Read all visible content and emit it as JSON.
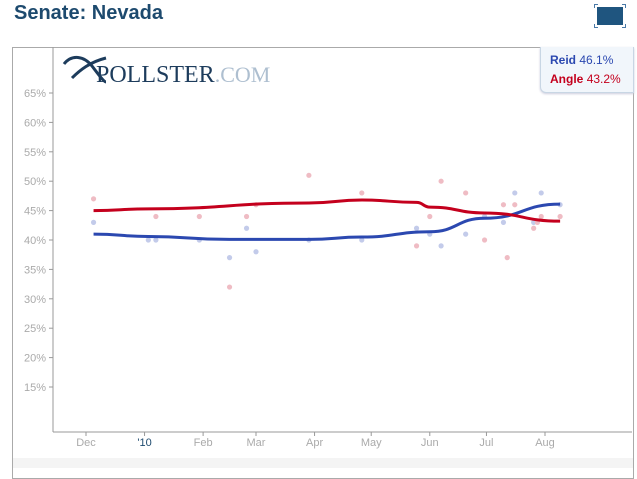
{
  "header": {
    "title": "Senate: Nevada",
    "fullscreen_icon": "fullscreen-icon"
  },
  "logo": {
    "text_main": "POLLSTER",
    "text_suffix": ".COM"
  },
  "legend": [
    {
      "name": "Reid",
      "value": "46.1%",
      "color": "#2b48b0"
    },
    {
      "name": "Angle",
      "value": "43.2%",
      "color": "#c4001d"
    }
  ],
  "chart_data": {
    "type": "scatter",
    "title": "Senate: Nevada",
    "ylim": [
      5,
      70
    ],
    "yticks": [
      15,
      20,
      25,
      30,
      35,
      40,
      45,
      50,
      55,
      60,
      65
    ],
    "ytick_labels": [
      "15%",
      "20%",
      "25%",
      "30%",
      "35%",
      "40%",
      "45%",
      "50%",
      "55%",
      "60%",
      "65%"
    ],
    "xticks": [
      "2009-12-01",
      "2010-01-01",
      "2010-02-01",
      "2010-03-01",
      "2010-04-01",
      "2010-05-01",
      "2010-06-01",
      "2010-07-01",
      "2010-08-01"
    ],
    "xtick_labels": [
      "Dec",
      "'10",
      "Feb",
      "Mar",
      "Apr",
      "May",
      "Jun",
      "Jul",
      "Aug"
    ],
    "xlim": [
      "2009-11-10",
      "2010-09-10"
    ],
    "series": [
      {
        "name": "Reid",
        "color": "#2b48b0",
        "points": [
          [
            "2009-12-05",
            43
          ],
          [
            "2010-01-03",
            40
          ],
          [
            "2010-01-07",
            40
          ],
          [
            "2010-01-30",
            40
          ],
          [
            "2010-02-15",
            37
          ],
          [
            "2010-02-24",
            42
          ],
          [
            "2010-03-01",
            38
          ],
          [
            "2010-03-29",
            40
          ],
          [
            "2010-04-26",
            40
          ],
          [
            "2010-05-25",
            42
          ],
          [
            "2010-06-01",
            41
          ],
          [
            "2010-06-07",
            39
          ],
          [
            "2010-06-20",
            41
          ],
          [
            "2010-06-30",
            44
          ],
          [
            "2010-07-10",
            43
          ],
          [
            "2010-07-16",
            48
          ],
          [
            "2010-07-26",
            43
          ],
          [
            "2010-07-30",
            48
          ],
          [
            "2010-08-09",
            46
          ]
        ],
        "trend": [
          [
            "2009-12-05",
            41
          ],
          [
            "2010-01-03",
            40.6
          ],
          [
            "2010-02-15",
            40.1
          ],
          [
            "2010-03-29",
            40.1
          ],
          [
            "2010-04-26",
            40.5
          ],
          [
            "2010-06-01",
            41.4
          ],
          [
            "2010-06-30",
            43.7
          ],
          [
            "2010-08-09",
            46.1
          ]
        ]
      },
      {
        "name": "Angle",
        "color": "#c4001d",
        "points": [
          [
            "2009-12-05",
            47
          ],
          [
            "2010-01-07",
            44
          ],
          [
            "2010-01-30",
            44
          ],
          [
            "2010-02-15",
            32
          ],
          [
            "2010-02-24",
            44
          ],
          [
            "2010-03-01",
            46
          ],
          [
            "2010-03-29",
            51
          ],
          [
            "2010-04-26",
            48
          ],
          [
            "2010-05-25",
            39
          ],
          [
            "2010-06-01",
            44
          ],
          [
            "2010-06-07",
            50
          ],
          [
            "2010-06-20",
            48
          ],
          [
            "2010-06-30",
            40
          ],
          [
            "2010-07-10",
            46
          ],
          [
            "2010-07-12",
            37
          ],
          [
            "2010-07-16",
            46
          ],
          [
            "2010-07-26",
            42
          ],
          [
            "2010-07-28",
            43
          ],
          [
            "2010-07-30",
            44
          ],
          [
            "2010-08-09",
            44
          ]
        ],
        "trend": [
          [
            "2009-12-05",
            45
          ],
          [
            "2010-01-03",
            45.3
          ],
          [
            "2010-03-29",
            46.3
          ],
          [
            "2010-04-26",
            46.8
          ],
          [
            "2010-05-25",
            46.4
          ],
          [
            "2010-06-01",
            45.6
          ],
          [
            "2010-06-30",
            44.6
          ],
          [
            "2010-08-09",
            43.2
          ]
        ]
      }
    ],
    "grid": false,
    "legend_position": "top-right"
  }
}
